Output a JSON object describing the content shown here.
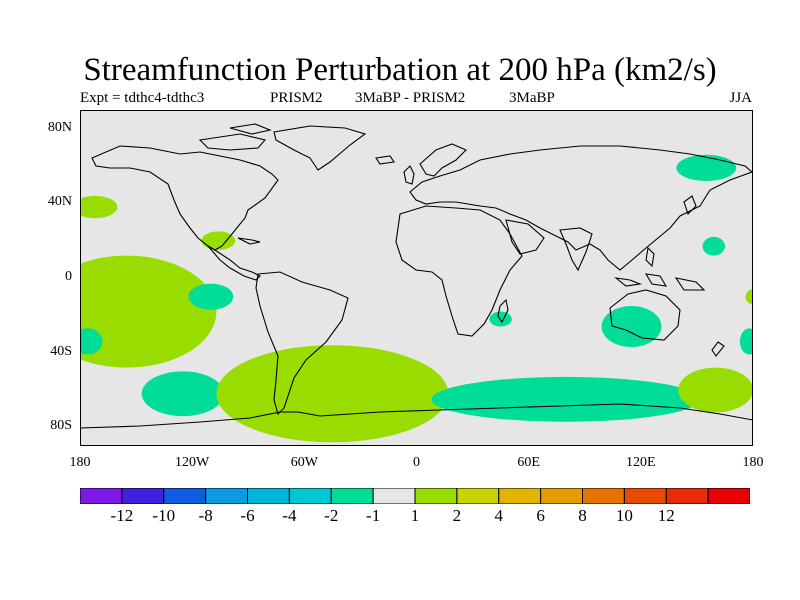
{
  "header": {
    "title": "Streamfunction Perturbation at 200 hPa (km2/s)",
    "expt": "Expt = tdthc4-tdthc3",
    "comparison_left": "PRISM2",
    "comparison_mid": "3MaBP - PRISM2",
    "comparison_right": "3MaBP",
    "season": "JJA"
  },
  "map": {
    "lat_range": [
      -90,
      90
    ],
    "lon_range": [
      -180,
      180
    ],
    "y_ticks": [
      "80N",
      "40N",
      "0",
      "40S",
      "80S"
    ],
    "x_ticks": [
      "180",
      "120W",
      "60W",
      "0",
      "60E",
      "120E",
      "180"
    ],
    "background_color": "#e6e6e6",
    "regions": [
      {
        "name": "north-pacific-west-green",
        "lon": -172,
        "lat": 38,
        "w": 12,
        "h": 6,
        "color": "#99dd00"
      },
      {
        "name": "mexico-green",
        "lon": -106,
        "lat": 20,
        "w": 9,
        "h": 5,
        "color": "#99dd00"
      },
      {
        "name": "south-pacific-green",
        "lon": -155,
        "lat": -18,
        "w": 48,
        "h": 30,
        "color": "#99dd00"
      },
      {
        "name": "south-pacific-teal",
        "lon": -110,
        "lat": -10,
        "w": 12,
        "h": 7,
        "color": "#00dd99"
      },
      {
        "name": "far-west-teal",
        "lon": -176,
        "lat": -34,
        "w": 8,
        "h": 7,
        "color": "#00dd99"
      },
      {
        "name": "south-pacific-south-teal",
        "lon": -125,
        "lat": -62,
        "w": 22,
        "h": 12,
        "color": "#00dd99"
      },
      {
        "name": "south-atlantic-green",
        "lon": -45,
        "lat": -62,
        "w": 62,
        "h": 26,
        "color": "#99dd00"
      },
      {
        "name": "madagascar-teal",
        "lon": 45,
        "lat": -22,
        "w": 6,
        "h": 4,
        "color": "#00dd99"
      },
      {
        "name": "southern-indian-teal",
        "lon": 80,
        "lat": -65,
        "w": 72,
        "h": 12,
        "color": "#00dd99"
      },
      {
        "name": "australia-teal",
        "lon": 115,
        "lat": -26,
        "w": 16,
        "h": 11,
        "color": "#00dd99"
      },
      {
        "name": "western-pacific-teal",
        "lon": 159,
        "lat": 17,
        "w": 6,
        "h": 5,
        "color": "#00dd99"
      },
      {
        "name": "siberia-teal",
        "lon": 155,
        "lat": 59,
        "w": 16,
        "h": 7,
        "color": "#00dd99"
      },
      {
        "name": "new-zealand-green",
        "lon": 160,
        "lat": -60,
        "w": 20,
        "h": 12,
        "color": "#99dd00"
      },
      {
        "name": "far-east-green",
        "lon": 180,
        "lat": -10,
        "w": 4,
        "h": 4,
        "color": "#99dd00"
      },
      {
        "name": "far-east-teal",
        "lon": 178,
        "lat": -34,
        "w": 5,
        "h": 7,
        "color": "#00dd99"
      }
    ]
  },
  "colorbar": {
    "colors": [
      "#7d19e6",
      "#3f22e0",
      "#0f5ce0",
      "#0a9be0",
      "#00b4dc",
      "#00c8d2",
      "#00dd99",
      "#e6e6e6",
      "#99dd00",
      "#c8d200",
      "#e0b400",
      "#e69b00",
      "#e67300",
      "#e64b00",
      "#e62a0a",
      "#e60000"
    ],
    "labels": [
      "-12",
      "-10",
      "-8",
      "-6",
      "-4",
      "-2",
      "-1",
      "1",
      "2",
      "4",
      "6",
      "8",
      "10",
      "12"
    ]
  }
}
